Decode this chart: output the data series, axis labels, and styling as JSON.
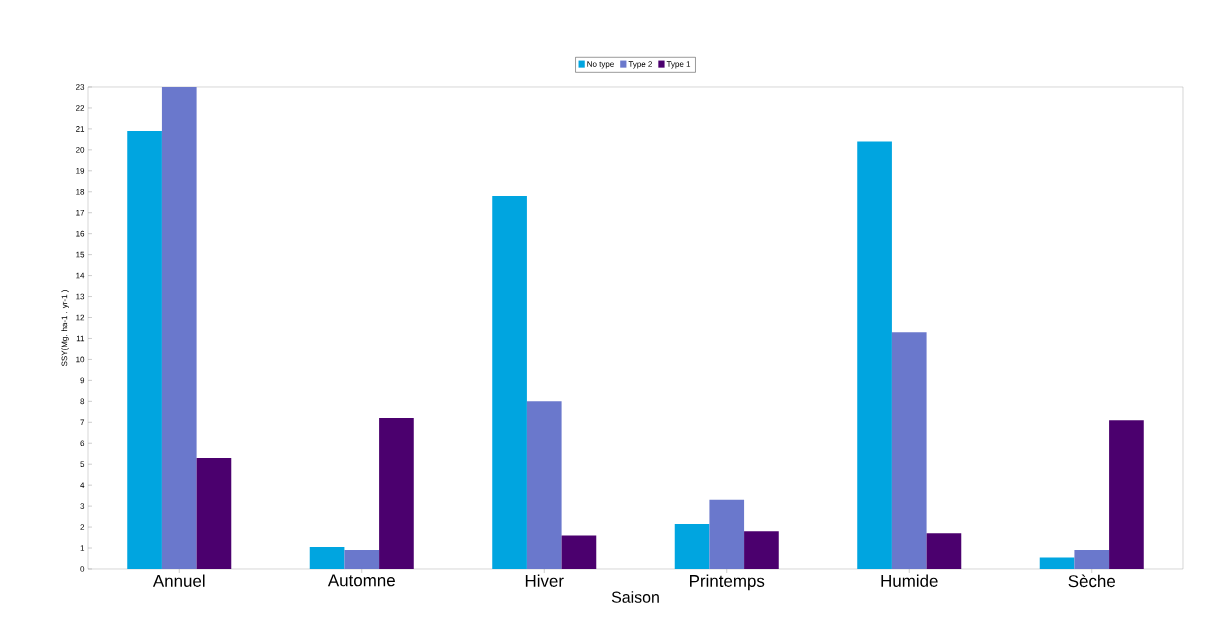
{
  "chart_data": {
    "type": "bar",
    "xlabel": "Saison",
    "ylabel": "SSY(Mg. ha-1 . yr-1 )",
    "categories": [
      "Annuel",
      "Automne",
      "Hiver",
      "Printemps",
      "Humide",
      "Sèche"
    ],
    "series": [
      {
        "name": "No type",
        "color": "#00a5e0",
        "values": [
          20.9,
          1.05,
          17.8,
          2.15,
          20.4,
          0.55
        ]
      },
      {
        "name": "Type 2",
        "color": "#6a78cc",
        "values": [
          23,
          0.9,
          8.0,
          3.3,
          11.3,
          0.9
        ]
      },
      {
        "name": "Type 1",
        "color": "#4b006e",
        "values": [
          5.3,
          7.2,
          1.6,
          1.8,
          1.7,
          7.1
        ]
      }
    ],
    "ylim": [
      0,
      23
    ],
    "yticks": [
      0,
      1,
      2,
      3,
      4,
      5,
      6,
      7,
      8,
      9,
      10,
      11,
      12,
      13,
      14,
      15,
      16,
      17,
      18,
      19,
      20,
      21,
      22,
      23
    ],
    "grid": false,
    "legend": "top"
  }
}
